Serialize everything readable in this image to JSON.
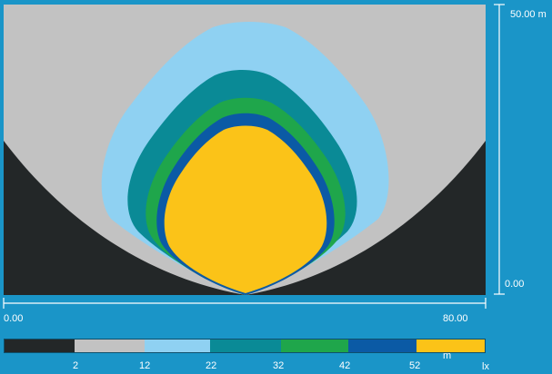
{
  "axes": {
    "x_start": "0.00",
    "x_end": "80.00",
    "y_top": "50.00 m",
    "y_bottom": "0.00"
  },
  "legend": {
    "unit_distance": "m",
    "unit_lux": "lx",
    "ticks": [
      "2",
      "12",
      "22",
      "32",
      "42",
      "52"
    ],
    "bands": [
      {
        "color": "#232728"
      },
      {
        "color": "#c2c2c2"
      },
      {
        "color": "#8fd1f2"
      },
      {
        "color": "#0a8a96"
      },
      {
        "color": "#1fa64b"
      },
      {
        "color": "#0b5aa5"
      },
      {
        "color": "#fbc318"
      }
    ]
  },
  "chart_data": {
    "type": "heatmap",
    "xlim": [
      0,
      80
    ],
    "ylim": [
      0,
      50
    ],
    "xlabel": "",
    "ylabel": "",
    "levels_lx": [
      2,
      12,
      22,
      32,
      42,
      52
    ],
    "colors": [
      "#232728",
      "#c2c2c2",
      "#8fd1f2",
      "#0a8a96",
      "#1fa64b",
      "#0b5aa5",
      "#fbc318"
    ]
  }
}
